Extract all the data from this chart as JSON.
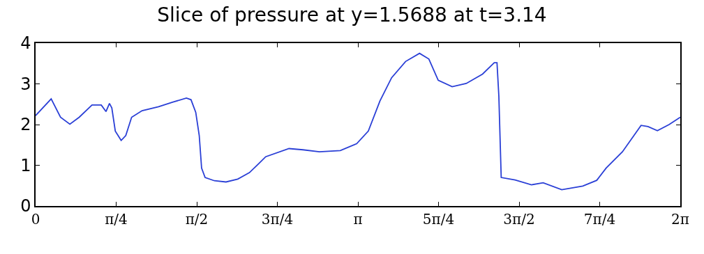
{
  "chart_data": {
    "type": "line",
    "title": "Slice of pressure at y=1.5688 at t=3.14",
    "x": [
      0,
      0.152,
      0.243,
      0.334,
      0.425,
      0.55,
      0.64,
      0.686,
      0.72,
      0.743,
      0.777,
      0.834,
      0.879,
      0.936,
      1.038,
      1.198,
      1.334,
      1.47,
      1.515,
      1.561,
      1.595,
      1.618,
      1.652,
      1.743,
      1.856,
      1.97,
      2.084,
      2.175,
      2.243,
      2.47,
      2.606,
      2.766,
      2.97,
      3.129,
      3.243,
      3.356,
      3.47,
      3.606,
      3.742,
      3.833,
      3.924,
      4.06,
      4.197,
      4.356,
      4.47,
      4.497,
      4.515,
      4.538,
      4.674,
      4.833,
      4.947,
      5.128,
      5.333,
      5.469,
      5.56,
      5.719,
      5.901,
      5.969,
      6.06,
      6.174,
      6.283
    ],
    "series": [
      {
        "color": "#2a3fd6",
        "values": [
          2.22,
          2.63,
          2.18,
          2.01,
          2.18,
          2.48,
          2.48,
          2.32,
          2.52,
          2.41,
          1.84,
          1.61,
          1.73,
          2.18,
          2.34,
          2.44,
          2.55,
          2.65,
          2.61,
          2.3,
          1.73,
          0.93,
          0.7,
          0.62,
          0.59,
          0.66,
          0.82,
          1.04,
          1.21,
          1.41,
          1.38,
          1.33,
          1.36,
          1.53,
          1.84,
          2.58,
          3.15,
          3.55,
          3.75,
          3.61,
          3.09,
          2.93,
          3.01,
          3.24,
          3.52,
          3.52,
          2.7,
          0.7,
          0.64,
          0.52,
          0.57,
          0.4,
          0.49,
          0.63,
          0.93,
          1.33,
          1.98,
          1.95,
          1.85,
          2.0,
          2.18
        ]
      }
    ],
    "xlim": [
      0,
      6.2832
    ],
    "xticks": [
      0,
      {
        "value": 0.7854,
        "label": "π/4"
      },
      {
        "value": 1.5708,
        "label": "π/2"
      },
      {
        "value": 2.3562,
        "label": "3π/4"
      },
      {
        "value": 3.1416,
        "label": "π"
      },
      {
        "value": 3.927,
        "label": "5π/4"
      },
      {
        "value": 4.7124,
        "label": "3π/2"
      },
      {
        "value": 5.4978,
        "label": "7π/4"
      },
      {
        "value": 6.2832,
        "label": "2π"
      }
    ],
    "ylim": [
      0,
      4
    ],
    "yticks": [
      0,
      1,
      2,
      3,
      4
    ],
    "marker": "none",
    "line_style": "solid"
  }
}
